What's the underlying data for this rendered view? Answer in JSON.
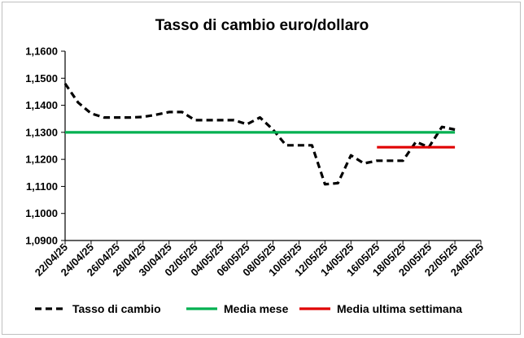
{
  "chart_data": {
    "type": "line",
    "title": "Tasso di cambio euro/dollaro",
    "xlabel": "",
    "ylabel": "",
    "x_range": [
      "22/04/25",
      "24/05/25"
    ],
    "ylim": [
      1.09,
      1.16
    ],
    "y_ticks": [
      "1,1600",
      "1,1500",
      "1,1400",
      "1,1300",
      "1,1200",
      "1,1100",
      "1,1000",
      "1,0900"
    ],
    "x_ticks": [
      "22/04/25",
      "24/04/25",
      "26/04/25",
      "28/04/25",
      "30/04/25",
      "02/05/25",
      "04/05/25",
      "06/05/25",
      "08/05/25",
      "10/05/25",
      "12/05/25",
      "14/05/25",
      "16/05/25",
      "18/05/25",
      "20/05/25",
      "22/05/25",
      "24/05/25"
    ],
    "grid": "none",
    "legend_position": "bottom",
    "series": [
      {
        "name": "Tasso di cambio",
        "color": "#000000",
        "style": "dashed",
        "points": [
          [
            "22/04/25",
            1.148
          ],
          [
            "23/04/25",
            1.141
          ],
          [
            "24/04/25",
            1.137
          ],
          [
            "25/04/25",
            1.1355
          ],
          [
            "26/04/25",
            1.1355
          ],
          [
            "27/04/25",
            1.1355
          ],
          [
            "28/04/25",
            1.1357
          ],
          [
            "29/04/25",
            1.1365
          ],
          [
            "30/04/25",
            1.1375
          ],
          [
            "01/05/25",
            1.1375
          ],
          [
            "02/05/25",
            1.1345
          ],
          [
            "03/05/25",
            1.1345
          ],
          [
            "04/05/25",
            1.1345
          ],
          [
            "05/05/25",
            1.1345
          ],
          [
            "06/05/25",
            1.133
          ],
          [
            "07/05/25",
            1.1355
          ],
          [
            "08/05/25",
            1.131
          ],
          [
            "09/05/25",
            1.1252
          ],
          [
            "10/05/25",
            1.1252
          ],
          [
            "11/05/25",
            1.1252
          ],
          [
            "12/05/25",
            1.1108
          ],
          [
            "13/05/25",
            1.1112
          ],
          [
            "14/05/25",
            1.1215
          ],
          [
            "15/05/25",
            1.1185
          ],
          [
            "16/05/25",
            1.1195
          ],
          [
            "17/05/25",
            1.1195
          ],
          [
            "18/05/25",
            1.1195
          ],
          [
            "19/05/25",
            1.1265
          ],
          [
            "20/05/25",
            1.1245
          ],
          [
            "21/05/25",
            1.132
          ],
          [
            "22/05/25",
            1.131
          ]
        ]
      },
      {
        "name": "Media mese",
        "color": "#00b050",
        "style": "solid",
        "points": [
          [
            "22/04/25",
            1.13
          ],
          [
            "22/05/25",
            1.13
          ]
        ]
      },
      {
        "name": "Media ultima settimana",
        "color": "#e00000",
        "style": "solid",
        "points": [
          [
            "16/05/25",
            1.1245
          ],
          [
            "22/05/25",
            1.1245
          ]
        ]
      }
    ]
  }
}
